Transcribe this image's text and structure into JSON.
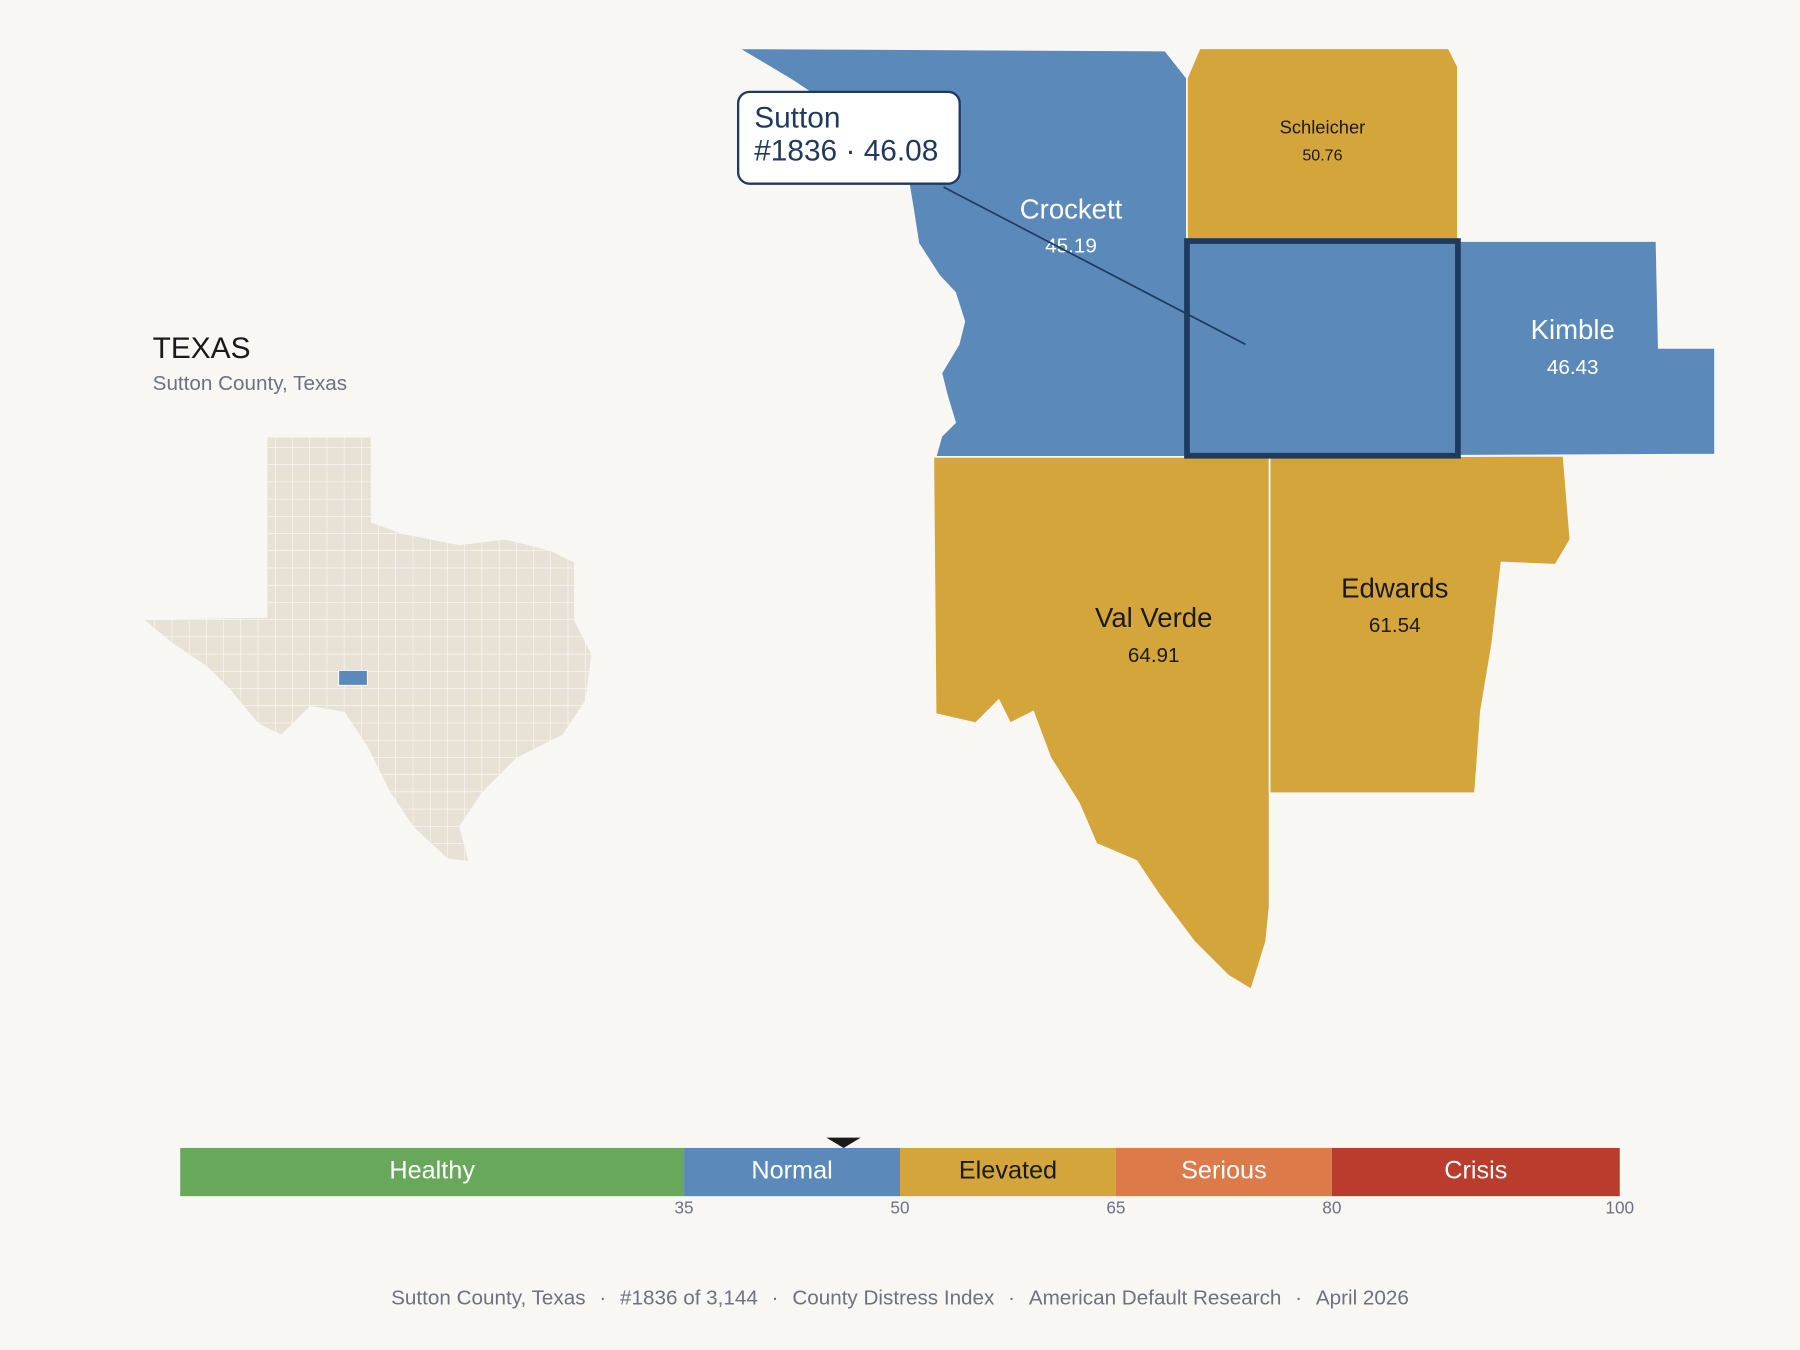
{
  "state": {
    "title": "TEXAS",
    "subtitle": "Sutton County, Texas"
  },
  "callout": {
    "name": "Sutton",
    "rank": "#1836",
    "separator": "·",
    "score": 46.08
  },
  "counties": [
    {
      "name": "Crockett",
      "score": 45.19
    },
    {
      "name": "Schleicher",
      "score": 50.76
    },
    {
      "name": "Kimble",
      "score": 46.43
    },
    {
      "name": "Val Verde",
      "score": 64.91
    },
    {
      "name": "Edwards",
      "score": 61.54
    }
  ],
  "scale": {
    "range": [
      0,
      100
    ],
    "ticks": [
      35,
      50,
      65,
      80,
      100
    ],
    "bands": [
      {
        "label": "Healthy",
        "color": "#68a85a"
      },
      {
        "label": "Normal",
        "color": "#5b8aba"
      },
      {
        "label": "Elevated",
        "color": "#d4a53a"
      },
      {
        "label": "Serious",
        "color": "#dd7a4a"
      },
      {
        "label": "Crisis",
        "color": "#b93c2c"
      }
    ]
  },
  "footer": {
    "separator": "·",
    "items": [
      "Sutton County, Texas",
      "#1836 of 3,144",
      "County Distress Index",
      "American Default Research",
      "April 2026"
    ]
  }
}
